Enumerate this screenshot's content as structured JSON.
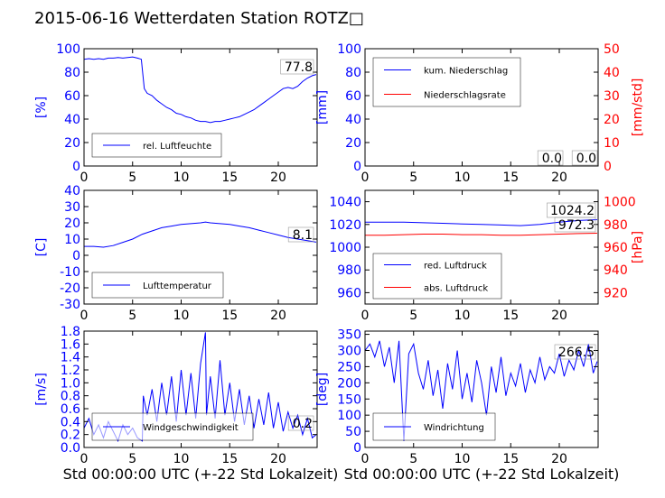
{
  "title": "2015-06-16 Wetterdaten Station ROTZ□",
  "colors": {
    "blue": "#0000ff",
    "red": "#ff0000",
    "black": "#000000",
    "frame": "#000000"
  },
  "xlabel": "Std 00:00:00 UTC (+-22 Std Lokalzeit)",
  "chart_data": [
    {
      "id": "humidity",
      "type": "line",
      "ylabel": "[%]",
      "xlim": [
        0,
        24
      ],
      "ylim": [
        0,
        100
      ],
      "xticks": [
        0,
        5,
        10,
        15,
        20
      ],
      "yticks": [
        0,
        20,
        40,
        60,
        80,
        100
      ],
      "legend": [
        "rel. Luftfeuchte"
      ],
      "legend_loc": "lower-left",
      "annotations": [
        "77.8"
      ],
      "series": [
        {
          "name": "rel. Luftfeuchte",
          "color": "#0000ff",
          "axis": "left",
          "x": [
            0,
            0.5,
            1,
            1.5,
            2,
            2.5,
            3,
            3.5,
            4,
            4.5,
            5,
            5.5,
            5.9,
            6.2,
            6.5,
            7,
            7.5,
            8,
            8.5,
            9,
            9.5,
            10,
            10.5,
            11,
            11.5,
            12,
            12.5,
            13,
            13.5,
            14,
            14.5,
            15,
            15.5,
            16,
            16.5,
            17,
            17.5,
            18,
            18.5,
            19,
            19.5,
            20,
            20.5,
            21,
            21.5,
            22,
            22.5,
            23,
            23.5,
            23.9
          ],
          "y": [
            91,
            91.5,
            91,
            91.5,
            91,
            92,
            92,
            92.5,
            92,
            92.5,
            93,
            92,
            91,
            66,
            62,
            60,
            56,
            53,
            50,
            48,
            45,
            44,
            42,
            41,
            39,
            38,
            38,
            37,
            38,
            38,
            39,
            40,
            41,
            42,
            44,
            46,
            48,
            51,
            54,
            57,
            60,
            63,
            66,
            67,
            66,
            68,
            72,
            75,
            77,
            78
          ]
        }
      ]
    },
    {
      "id": "precip",
      "type": "line",
      "ylabel": "[mm]",
      "y2label": "[mm/std]",
      "xlim": [
        0,
        24
      ],
      "ylim": [
        0,
        100
      ],
      "y2lim": [
        0,
        50
      ],
      "xticks": [
        0,
        5,
        10,
        15,
        20
      ],
      "yticks": [
        0,
        20,
        40,
        60,
        80,
        100
      ],
      "y2ticks": [
        0,
        10,
        20,
        30,
        40,
        50
      ],
      "legend": [
        "kum. Niederschlag",
        "Niederschlagsrate"
      ],
      "legend_loc": "upper-left",
      "annotations": [
        "0.0",
        "0.0"
      ],
      "series": [
        {
          "name": "kum. Niederschlag",
          "color": "#0000ff",
          "axis": "left",
          "x": [
            0,
            23.9
          ],
          "y": [
            0,
            0
          ]
        },
        {
          "name": "Niederschlagsrate",
          "color": "#ff0000",
          "axis": "right",
          "x": [
            0,
            23.9
          ],
          "y": [
            0,
            0
          ]
        }
      ]
    },
    {
      "id": "temperature",
      "type": "line",
      "ylabel": "[C]",
      "xlim": [
        0,
        24
      ],
      "ylim": [
        -30,
        40
      ],
      "xticks": [
        0,
        5,
        10,
        15,
        20
      ],
      "yticks": [
        -30,
        -20,
        -10,
        0,
        10,
        20,
        30,
        40
      ],
      "legend": [
        "Lufttemperatur"
      ],
      "legend_loc": "lower-left",
      "annotations": [
        "8.1"
      ],
      "series": [
        {
          "name": "Lufttemperatur",
          "color": "#0000ff",
          "axis": "left",
          "x": [
            0,
            1,
            2,
            3,
            4,
            5,
            6,
            7,
            8,
            9,
            10,
            11,
            12,
            12.5,
            13,
            14,
            15,
            16,
            17,
            18,
            19,
            20,
            21,
            22,
            23,
            23.9
          ],
          "y": [
            5.5,
            5.5,
            5,
            6,
            8,
            10,
            13,
            15,
            17,
            18,
            19,
            19.5,
            20,
            20.5,
            20,
            19.5,
            19,
            18,
            17,
            15.5,
            14,
            12.5,
            11,
            10,
            9,
            8.1
          ]
        }
      ]
    },
    {
      "id": "pressure",
      "type": "line",
      "ylabel": "",
      "y2label": "[hPa]",
      "xlim": [
        0,
        24
      ],
      "ylim": [
        950,
        1050
      ],
      "y2lim": [
        910,
        1010
      ],
      "xticks": [
        0,
        5,
        10,
        15,
        20
      ],
      "yticks": [
        960,
        980,
        1000,
        1020,
        1040
      ],
      "y2ticks": [
        920,
        940,
        960,
        980,
        1000
      ],
      "legend": [
        "red. Luftdruck",
        "abs. Luftdruck"
      ],
      "legend_loc": "lower-left",
      "annotations": [
        "1024.2",
        "972.3"
      ],
      "series": [
        {
          "name": "red. Luftdruck",
          "color": "#0000ff",
          "axis": "left",
          "x": [
            0,
            2,
            4,
            6,
            8,
            10,
            12,
            14,
            16,
            18,
            20,
            22,
            23.9
          ],
          "y": [
            1022,
            1022,
            1022,
            1021.5,
            1021,
            1020.5,
            1020,
            1019.5,
            1019,
            1020,
            1022,
            1023.5,
            1024.2
          ]
        },
        {
          "name": "abs. Luftdruck",
          "color": "#ff0000",
          "axis": "right",
          "x": [
            0,
            2,
            4,
            6,
            8,
            10,
            12,
            14,
            16,
            18,
            20,
            22,
            23.9
          ],
          "y": [
            970.5,
            970.5,
            971,
            971.5,
            971.5,
            971,
            971,
            970.5,
            970.5,
            971,
            971.5,
            972,
            972.3
          ]
        }
      ]
    },
    {
      "id": "windspeed",
      "type": "line",
      "ylabel": "[m/s]",
      "xlim": [
        0,
        24
      ],
      "ylim": [
        0,
        1.8
      ],
      "xticks": [
        0,
        5,
        10,
        15,
        20
      ],
      "yticks": [
        0.0,
        0.2,
        0.4,
        0.6,
        0.8,
        1.0,
        1.2,
        1.4,
        1.6,
        1.8
      ],
      "legend": [
        "Windgeschwindigkeit"
      ],
      "legend_loc": "lower-left",
      "annotations": [
        "0.2"
      ],
      "series": [
        {
          "name": "Windgeschwindigkeit",
          "color": "#0000ff",
          "axis": "left",
          "x": [
            0,
            0.5,
            1,
            1.5,
            2,
            2.5,
            3,
            3.5,
            4,
            4.5,
            5,
            5.5,
            6,
            6.1,
            6.5,
            7,
            7.5,
            8,
            8.5,
            9,
            9.5,
            10,
            10.5,
            11,
            11.5,
            12,
            12.5,
            12.6,
            13,
            13.5,
            14,
            14.5,
            15,
            15.5,
            16,
            16.5,
            17,
            17.5,
            18,
            18.5,
            19,
            19.5,
            20,
            20.5,
            21,
            21.5,
            22,
            22.5,
            23,
            23.5,
            23.9
          ],
          "y": [
            0.3,
            0.45,
            0.2,
            0.35,
            0.15,
            0.4,
            0.25,
            0.1,
            0.35,
            0.2,
            0.3,
            0.15,
            0.1,
            0.8,
            0.5,
            0.9,
            0.4,
            1.0,
            0.5,
            1.1,
            0.4,
            1.2,
            0.5,
            1.15,
            0.45,
            1.3,
            1.78,
            0.5,
            1.1,
            0.45,
            1.35,
            0.5,
            1.0,
            0.4,
            0.9,
            0.35,
            0.8,
            0.3,
            0.75,
            0.35,
            0.85,
            0.3,
            0.7,
            0.25,
            0.55,
            0.3,
            0.5,
            0.2,
            0.45,
            0.15,
            0.2
          ]
        }
      ]
    },
    {
      "id": "winddir",
      "type": "line",
      "ylabel": "[deg]",
      "xlim": [
        0,
        24
      ],
      "ylim": [
        0,
        360
      ],
      "xticks": [
        0,
        5,
        10,
        15,
        20
      ],
      "yticks": [
        0,
        50,
        100,
        150,
        200,
        250,
        300,
        350
      ],
      "legend": [
        "Windrichtung"
      ],
      "legend_loc": "lower-left",
      "annotations": [
        "266.5"
      ],
      "series": [
        {
          "name": "Windrichtung",
          "color": "#0000ff",
          "axis": "left",
          "x": [
            0,
            0.5,
            1,
            1.5,
            2,
            2.5,
            3,
            3.5,
            4,
            4.5,
            5,
            5.5,
            6,
            6.5,
            7,
            7.5,
            8,
            8.5,
            9,
            9.5,
            10,
            10.5,
            11,
            11.5,
            12,
            12.5,
            13,
            13.5,
            14,
            14.5,
            15,
            15.5,
            16,
            16.5,
            17,
            17.5,
            18,
            18.5,
            19,
            19.5,
            20,
            20.5,
            21,
            21.5,
            22,
            22.5,
            23,
            23.5,
            23.9
          ],
          "y": [
            300,
            320,
            280,
            330,
            250,
            310,
            200,
            330,
            20,
            290,
            320,
            230,
            180,
            270,
            160,
            240,
            120,
            260,
            180,
            300,
            150,
            230,
            140,
            270,
            200,
            100,
            250,
            170,
            280,
            160,
            230,
            190,
            260,
            170,
            240,
            200,
            280,
            210,
            250,
            230,
            290,
            220,
            270,
            240,
            300,
            250,
            320,
            230,
            266
          ]
        }
      ]
    }
  ]
}
